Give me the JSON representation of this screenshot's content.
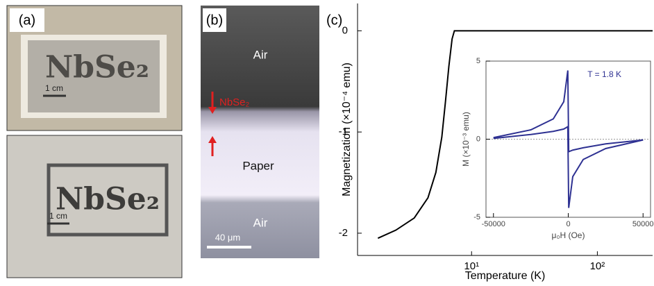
{
  "panels": {
    "a": {
      "label": "(a)",
      "top": {
        "text": "NbSe₂",
        "scale": "1 cm"
      },
      "bottom": {
        "text": "NbSe₂",
        "scale": "1 cm"
      }
    },
    "b": {
      "label": "(b)",
      "regions": [
        "Air",
        "Paper",
        "Air"
      ],
      "layer": "NbSe₂",
      "scale": "40 μm"
    },
    "c": {
      "label": "(c)"
    }
  },
  "chart_data": [
    {
      "type": "line",
      "xlabel": "Temperature (K)",
      "ylabel": "Magnetization (×10⁻⁴ emu)",
      "xscale": "log",
      "xlim": [
        1.24,
        275
      ],
      "ylim": [
        -2.22,
        0.27
      ],
      "xticks": [
        {
          "value": 10,
          "label": "10¹"
        },
        {
          "value": 100,
          "label": "10²"
        }
      ],
      "yticks": [
        -2,
        -1,
        0
      ],
      "color": "#000000",
      "x": [
        1.8,
        2.5,
        3.5,
        4.5,
        5.2,
        5.8,
        6.2,
        6.6,
        7.0,
        7.3,
        10,
        50,
        275
      ],
      "values": [
        -2.05,
        -1.97,
        -1.85,
        -1.65,
        -1.4,
        -1.05,
        -0.7,
        -0.35,
        -0.08,
        0,
        0,
        0,
        0
      ]
    },
    {
      "type": "line",
      "xlabel": "μ₀H (Oe)",
      "ylabel": "M (×10⁻³ emu)",
      "annotation": "T = 1.8 K",
      "xlim": [
        -55000,
        55000
      ],
      "ylim": [
        -5,
        5
      ],
      "xticks": [
        -50000,
        0,
        50000
      ],
      "yticks": [
        -5,
        0,
        5
      ],
      "zero_line": true,
      "series": [
        {
          "color": "#2e3192",
          "x": [
            50000,
            25000,
            10000,
            3000,
            300,
            -300,
            -3000,
            -10000,
            -25000,
            -50000
          ],
          "values": [
            -0.05,
            -0.3,
            -0.55,
            -0.7,
            -0.8,
            4.4,
            2.4,
            1.3,
            0.6,
            0.1
          ]
        },
        {
          "color": "#2e3192",
          "x": [
            -50000,
            -25000,
            -10000,
            -3000,
            -300,
            300,
            3000,
            10000,
            25000,
            50000
          ],
          "values": [
            0.05,
            0.3,
            0.5,
            0.65,
            0.8,
            -4.4,
            -2.4,
            -1.3,
            -0.6,
            -0.05
          ]
        }
      ]
    }
  ]
}
